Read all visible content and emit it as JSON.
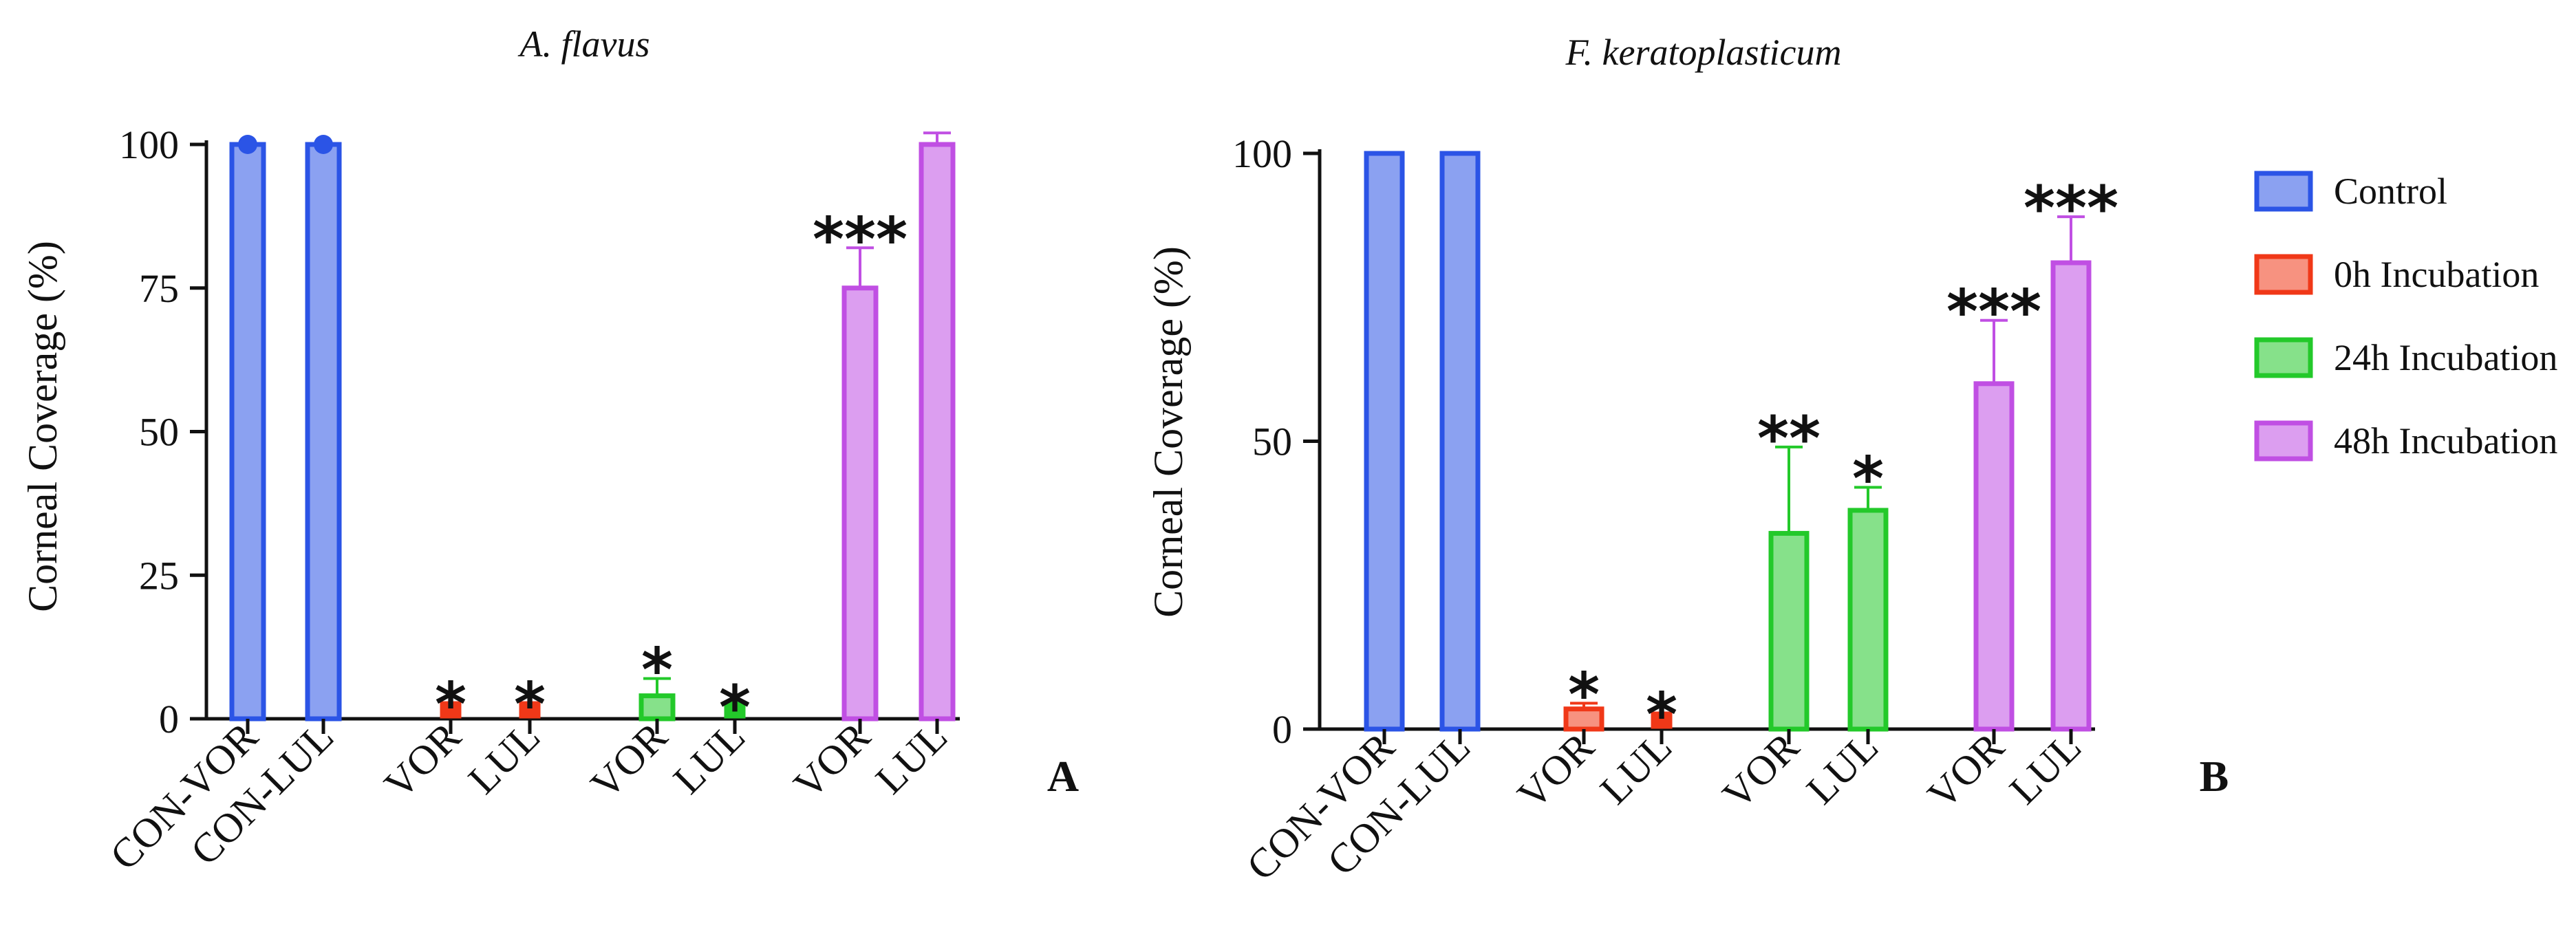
{
  "colors": {
    "Control": "#2b54e6",
    "0h Incubation": "#f03818",
    "24h Incubation": "#23c92a",
    "48h Incubation": "#c04fe3",
    "fill_alpha": 0.55
  },
  "legend": [
    {
      "label": "Control"
    },
    {
      "label": "0h Incubation"
    },
    {
      "label": "24h Incubation"
    },
    {
      "label": "48h Incubation"
    }
  ],
  "chart_data": [
    {
      "type": "bar",
      "panel_letter": "A",
      "title": "A. flavus",
      "ylabel": "Corneal Coverage (%)",
      "ylim": [
        0,
        100
      ],
      "yticks": [
        "0",
        "25",
        "50",
        "75",
        "100"
      ],
      "ytick_values": [
        0,
        25,
        50,
        75,
        100
      ],
      "categories": [
        "CON-VOR",
        "CON-LUL",
        "VOR",
        "LUL",
        "VOR",
        "LUL",
        "VOR",
        "LUL"
      ],
      "groups": [
        "Control",
        "Control",
        "0h Incubation",
        "0h Incubation",
        "24h Incubation",
        "24h Incubation",
        "48h Incubation",
        "48h Incubation"
      ],
      "values": [
        100,
        100,
        1,
        1,
        4,
        0.5,
        75,
        100
      ],
      "errors": [
        0,
        0,
        0.5,
        0.5,
        3,
        0.5,
        7,
        2
      ],
      "significance": [
        "",
        "",
        "*",
        "*",
        "*",
        "*",
        "***",
        ""
      ]
    },
    {
      "type": "bar",
      "panel_letter": "B",
      "title": "F. keratoplasticum",
      "ylabel": "Corneal Coverage (%)",
      "ylim": [
        0,
        100
      ],
      "yticks": [
        "0",
        "50",
        "100"
      ],
      "ytick_values": [
        0,
        50,
        100
      ],
      "categories": [
        "CON-VOR",
        "CON-LUL",
        "VOR",
        "LUL",
        "VOR",
        "LUL",
        "VOR",
        "LUL"
      ],
      "groups": [
        "Control",
        "Control",
        "0h Incubation",
        "0h Incubation",
        "24h Incubation",
        "24h Incubation",
        "48h Incubation",
        "48h Incubation"
      ],
      "values": [
        100,
        100,
        3.5,
        1,
        34,
        38,
        60,
        81
      ],
      "errors": [
        0,
        0,
        1,
        0.4,
        15,
        4,
        11,
        8
      ],
      "significance": [
        "",
        "",
        "*",
        "*",
        "**",
        "*",
        "***",
        "***"
      ]
    }
  ]
}
